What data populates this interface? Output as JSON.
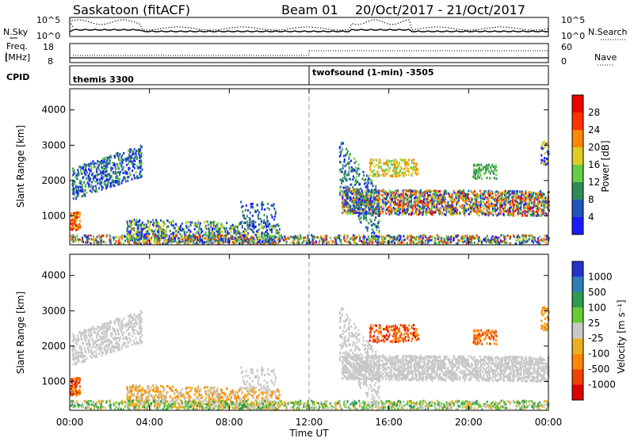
{
  "header": {
    "radar": "Saskatoon (fitACF)",
    "beam": "Beam 01",
    "date_range": "20/Oct/2017 - 21/Oct/2017"
  },
  "strips": {
    "nsky_label": "N.Sky",
    "nsky_ticks": [
      "10^5",
      "10^0"
    ],
    "nsearch_label": "N.Search",
    "nsearch_ticks": [
      "10^5",
      "10^0"
    ],
    "freq_label_1": "Freq.",
    "freq_label_2": "[MHz]",
    "freq_ticks": [
      "18",
      "8"
    ],
    "nave_label": "Nave",
    "nave_ticks": [
      "60",
      "0"
    ],
    "cpid_label": "CPID",
    "cpid_segments": [
      "themis 3300",
      "twofsound (1-min) -3505"
    ]
  },
  "chart_data": [
    {
      "type": "heatmap",
      "name": "power",
      "ylabel": "Slant Range [km]",
      "yticks": [
        "1000",
        "2000",
        "3000",
        "4000"
      ],
      "ylim": [
        180,
        4600
      ],
      "colorbar": {
        "label": "Power [dB]",
        "ticks": [
          "4",
          "8",
          "12",
          "16",
          "20",
          "24",
          "28"
        ],
        "colors": [
          "#1a1aff",
          "#2255bb",
          "#2e8b57",
          "#66cc44",
          "#ddcc22",
          "#ff8800",
          "#ff3300",
          "#ee0000"
        ]
      }
    },
    {
      "type": "heatmap",
      "name": "velocity",
      "ylabel": "Slant Range [km]",
      "yticks": [
        "1000",
        "2000",
        "3000",
        "4000"
      ],
      "ylim": [
        180,
        4600
      ],
      "xlabel": "Time UT",
      "xticks": [
        "00:00",
        "04:00",
        "08:00",
        "12:00",
        "16:00",
        "20:00",
        "00:00"
      ],
      "colorbar": {
        "label": "Velocity [m s⁻¹]",
        "ticks": [
          "1000",
          "500",
          "100",
          "25",
          "-25",
          "-100",
          "-500",
          "-1000"
        ],
        "colors": [
          "#2233cc",
          "#2e7db5",
          "#2e9b50",
          "#66cc33",
          "#c8c8c8",
          "#e8b020",
          "#ff8800",
          "#ee4400",
          "#dd0000"
        ]
      }
    }
  ]
}
